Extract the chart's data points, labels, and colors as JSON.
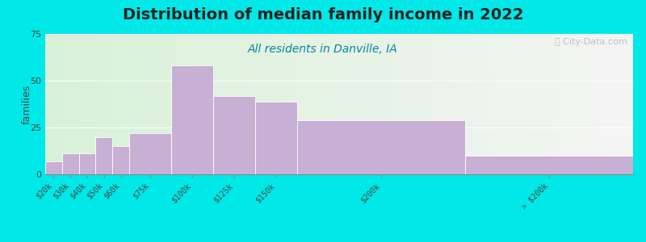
{
  "title": "Distribution of median family income in 2022",
  "subtitle": "All residents in Danville, IA",
  "categories": [
    "$20k",
    "$30k",
    "$40k",
    "$50k",
    "$60k",
    "$75k",
    "$100k",
    "$125k",
    "$150k",
    "$200k",
    "> $200k"
  ],
  "values": [
    7,
    11,
    11,
    20,
    15,
    22,
    58,
    42,
    39,
    29,
    10
  ],
  "bin_lefts": [
    0,
    10,
    20,
    30,
    40,
    50,
    75,
    100,
    125,
    150,
    250
  ],
  "bin_widths": [
    10,
    10,
    10,
    10,
    10,
    25,
    25,
    25,
    25,
    100,
    100
  ],
  "bar_color": "#c8b0d4",
  "bar_edgecolor": "#ffffff",
  "background_color": "#00e8e8",
  "ylabel": "families",
  "ylim": [
    0,
    75
  ],
  "yticks": [
    0,
    25,
    50,
    75
  ],
  "title_fontsize": 14,
  "title_fontweight": "bold",
  "subtitle_fontsize": 10,
  "subtitle_color": "#008899",
  "watermark_text": "ⓘ City-Data.com",
  "watermark_color": "#b0b8c0"
}
